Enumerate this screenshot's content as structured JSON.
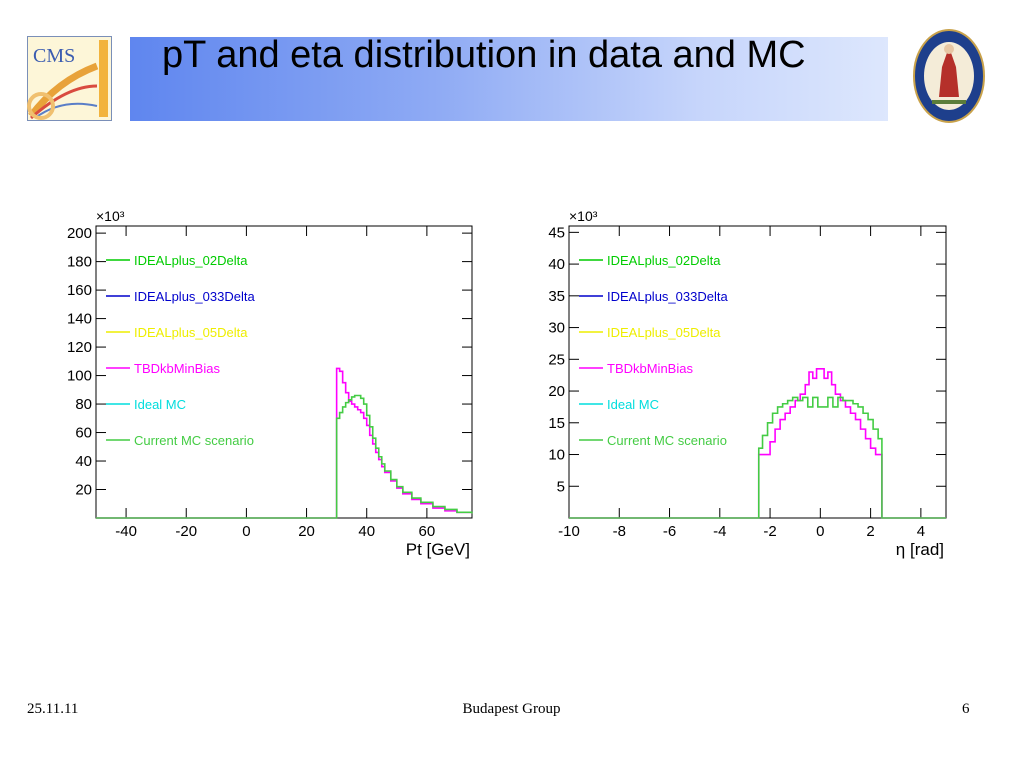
{
  "slide": {
    "title": "pT and eta distribution in data and MC",
    "date": "25.11.11",
    "group": "Budapest Group",
    "page": "6",
    "logo_text": "CMS"
  },
  "colors": {
    "title_gradient_start": "#5f86ef",
    "title_gradient_end": "#dde7fd",
    "IDEALplus_02Delta": "#00cc00",
    "IDEALplus_033Delta": "#0000cc",
    "IDEALplus_05Delta": "#eeee00",
    "TBDkbMinBias": "#ff00ff",
    "Ideal MC": "#00dddd",
    "Current MC scenario": "#44cc44"
  },
  "chart_data": [
    {
      "type": "line",
      "multiplier_label": "×10³",
      "xlabel": "Pt [GeV]",
      "ylabel": "",
      "xlim": [
        -50,
        75
      ],
      "ylim": [
        0,
        205
      ],
      "xticks": [
        -40,
        -20,
        0,
        20,
        40,
        60
      ],
      "yticks": [
        20,
        40,
        60,
        80,
        100,
        120,
        140,
        160,
        180,
        200
      ],
      "legend": [
        "IDEALplus_02Delta",
        "IDEALplus_033Delta",
        "IDEALplus_05Delta",
        "TBDkbMinBias",
        "Ideal MC",
        "Current MC scenario"
      ],
      "legend_placement": "upper-left",
      "series": [
        {
          "name": "TBDkbMinBias",
          "x": [
            -50,
            29,
            30,
            31,
            32,
            33,
            34,
            35,
            36,
            37,
            38,
            39,
            40,
            41,
            42,
            43,
            44,
            45,
            46,
            48,
            50,
            52,
            55,
            58,
            62,
            66,
            70,
            75
          ],
          "y": [
            0,
            0,
            105,
            103,
            95,
            88,
            82,
            80,
            78,
            76,
            74,
            70,
            65,
            58,
            52,
            46,
            41,
            36,
            32,
            26,
            21,
            17,
            13,
            10,
            7,
            5,
            4,
            3
          ]
        },
        {
          "name": "Current MC scenario",
          "x": [
            -50,
            29,
            30,
            31,
            32,
            33,
            34,
            35,
            36,
            37,
            38,
            39,
            40,
            41,
            42,
            43,
            44,
            45,
            46,
            48,
            50,
            52,
            55,
            58,
            62,
            66,
            70,
            75
          ],
          "y": [
            0,
            0,
            70,
            74,
            78,
            81,
            83,
            85,
            86,
            86,
            84,
            80,
            72,
            64,
            56,
            49,
            43,
            38,
            33,
            27,
            22,
            18,
            14,
            11,
            8,
            6,
            4,
            3
          ]
        }
      ]
    },
    {
      "type": "line",
      "multiplier_label": "×10³",
      "xlabel": "η [rad]",
      "ylabel": "",
      "xlim": [
        -10,
        5
      ],
      "ylim": [
        0,
        46
      ],
      "xticks": [
        -10,
        -8,
        -6,
        -4,
        -2,
        0,
        2,
        4
      ],
      "yticks": [
        5,
        10,
        15,
        20,
        25,
        30,
        35,
        40,
        45
      ],
      "legend": [
        "IDEALplus_02Delta",
        "IDEALplus_033Delta",
        "IDEALplus_05Delta",
        "TBDkbMinBias",
        "Ideal MC",
        "Current MC scenario"
      ],
      "legend_placement": "upper-left",
      "series": [
        {
          "name": "TBDkbMinBias",
          "x": [
            -10,
            -2.5,
            -2.45,
            -2.2,
            -2.0,
            -1.8,
            -1.6,
            -1.4,
            -1.2,
            -1.0,
            -0.8,
            -0.6,
            -0.45,
            -0.3,
            -0.15,
            0,
            0.15,
            0.3,
            0.45,
            0.6,
            0.8,
            1.0,
            1.2,
            1.4,
            1.6,
            1.8,
            2.0,
            2.2,
            2.4,
            2.45,
            5
          ],
          "y": [
            0,
            0,
            10,
            10,
            12,
            14,
            15.5,
            16.5,
            17.5,
            18.5,
            19.5,
            21,
            23,
            22,
            23.5,
            23.5,
            22,
            23,
            21,
            19.5,
            18.5,
            17.5,
            16.5,
            15.5,
            14,
            12.5,
            11,
            10,
            10,
            0,
            0
          ]
        },
        {
          "name": "Current MC scenario",
          "x": [
            -10,
            -2.5,
            -2.45,
            -2.3,
            -2.1,
            -1.9,
            -1.7,
            -1.5,
            -1.3,
            -1.1,
            -0.9,
            -0.7,
            -0.5,
            -0.3,
            -0.1,
            0.1,
            0.3,
            0.5,
            0.7,
            0.9,
            1.1,
            1.3,
            1.5,
            1.7,
            1.9,
            2.1,
            2.3,
            2.45,
            5
          ],
          "y": [
            0,
            0,
            11,
            13,
            15,
            16.5,
            17.5,
            18,
            18.5,
            19,
            18.5,
            19,
            17.5,
            19,
            17.5,
            17.5,
            19,
            17.5,
            19,
            18.5,
            18.5,
            18,
            17.5,
            16.5,
            15.5,
            14,
            12.5,
            0,
            0
          ]
        }
      ]
    }
  ]
}
